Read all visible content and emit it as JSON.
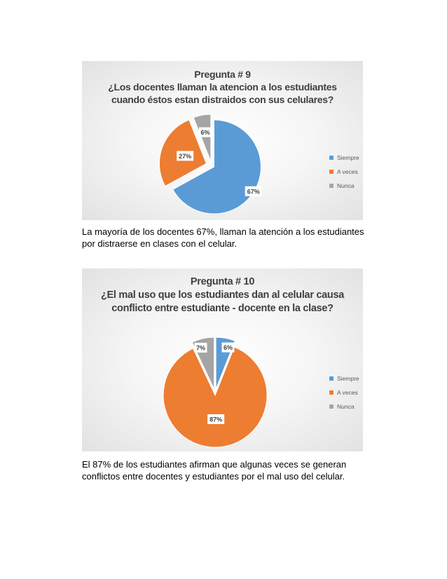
{
  "colors": {
    "siempre": "#5B9BD5",
    "a_veces": "#ED7D31",
    "nunca": "#A5A5A5"
  },
  "chart_data": [
    {
      "type": "pie",
      "title_lines": [
        "Pregunta # 9",
        "¿Los docentes llaman la atencion a los estudiantes",
        "cuando éstos estan distraidos con sus celulares?"
      ],
      "categories": [
        "Siempre",
        "A veces",
        "Nunca"
      ],
      "values": [
        67,
        27,
        6
      ],
      "data_labels": [
        "67%",
        "27%",
        "6%"
      ],
      "exploded": true,
      "legend_position": "right"
    },
    {
      "type": "pie",
      "title_lines": [
        "Pregunta # 10",
        "¿El mal uso que los estudiantes dan al celular causa",
        "conflicto entre estudiante - docente en la clase?"
      ],
      "categories": [
        "Siempre",
        "A veces",
        "Nunca"
      ],
      "values": [
        6,
        87,
        7
      ],
      "data_labels": [
        "6%",
        "87%",
        "7%"
      ],
      "exploded": true,
      "legend_position": "right"
    }
  ],
  "captions": {
    "q9": [
      "La mayoría  de los docentes 67%, llaman la atención a los estudiantes",
      "por distraerse en clases con el celular."
    ],
    "q10": [
      "El 87%  de los estudiantes afirman que algunas veces se generan",
      "conflictos entre docentes y estudiantes por el mal uso del celular."
    ]
  }
}
